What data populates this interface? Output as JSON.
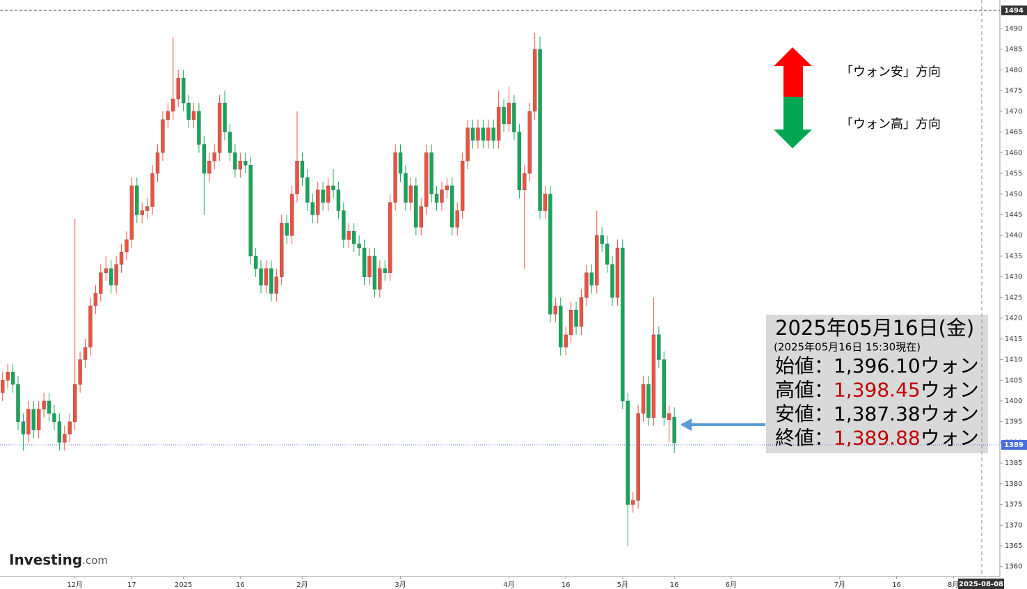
{
  "chart_data": {
    "type": "candlestick",
    "up_color": "#f0513e",
    "down_color": "#11a85a",
    "xlim": [
      -0.5,
      193
    ],
    "ylim": [
      1357.6,
      1496.9
    ],
    "yticks": [
      1360,
      1365,
      1370,
      1375,
      1380,
      1385,
      1390,
      1395,
      1400,
      1405,
      1410,
      1415,
      1420,
      1425,
      1430,
      1435,
      1440,
      1445,
      1450,
      1455,
      1460,
      1465,
      1470,
      1475,
      1480,
      1485,
      1490
    ],
    "xticks": [
      {
        "value": 14,
        "label": "12月"
      },
      {
        "value": 25,
        "label": "17"
      },
      {
        "value": 35,
        "label": "2025"
      },
      {
        "value": 46,
        "label": "16"
      },
      {
        "value": 58,
        "label": "2月"
      },
      {
        "value": 77,
        "label": "3月"
      },
      {
        "value": 98,
        "label": "4月"
      },
      {
        "value": 109,
        "label": "16"
      },
      {
        "value": 120,
        "label": "5月"
      },
      {
        "value": 130,
        "label": "16"
      },
      {
        "value": 141,
        "label": "6月"
      },
      {
        "value": 162,
        "label": "7月"
      },
      {
        "value": 173,
        "label": "16"
      },
      {
        "value": 184,
        "label": "8月"
      }
    ],
    "y_markers": [
      {
        "value": 1494.4,
        "label": "1494",
        "color": "#333333",
        "style": "dashed"
      },
      {
        "value": 1389.4,
        "label": "1389",
        "color": "#4a6fdc",
        "style": "dotted"
      }
    ],
    "x_marker": {
      "value": 189.5,
      "label": "2025-08-08"
    },
    "open": [
      1402,
      1405,
      1407,
      1404,
      1395,
      1392,
      1398,
      1393,
      1398,
      1400,
      1397,
      1395,
      1390,
      1392,
      1395,
      1404,
      1410,
      1413,
      1423,
      1426,
      1431,
      1432,
      1428,
      1433,
      1436,
      1439,
      1452,
      1445,
      1446,
      1447,
      1455,
      1460,
      1468,
      1470,
      1473,
      1478,
      1472,
      1468,
      1470,
      1462,
      1455,
      1458,
      1460,
      1472,
      1465,
      1460,
      1456,
      1458,
      1457,
      1435,
      1432,
      1428,
      1432,
      1426,
      1430,
      1443,
      1440,
      1450,
      1458,
      1454,
      1448,
      1445,
      1451,
      1448,
      1452,
      1451,
      1446,
      1439,
      1441,
      1438,
      1437,
      1430,
      1435,
      1427,
      1432,
      1431,
      1448,
      1460,
      1455,
      1448,
      1452,
      1442,
      1447,
      1460,
      1450,
      1448,
      1451,
      1452,
      1442,
      1446,
      1458,
      1466,
      1463,
      1466,
      1463,
      1466,
      1463,
      1471,
      1467,
      1472,
      1465,
      1451,
      1455,
      1470,
      1485,
      1446,
      1450,
      1421,
      1423,
      1413,
      1416,
      1422,
      1418,
      1425,
      1431,
      1428,
      1440,
      1438,
      1433,
      1425,
      1437,
      1400,
      1375,
      1376,
      1397,
      1404,
      1396,
      1416,
      1410,
      1395.5,
      1396.1
    ],
    "high": [
      1407,
      1409,
      1409,
      1406,
      1397,
      1400,
      1400,
      1400,
      1402,
      1402,
      1399,
      1397,
      1394,
      1397,
      1444,
      1412,
      1415,
      1425,
      1428,
      1433,
      1435,
      1434,
      1435,
      1438,
      1441,
      1454,
      1454,
      1448,
      1449,
      1457,
      1462,
      1470,
      1472,
      1488,
      1480,
      1480,
      1474,
      1472,
      1472,
      1464,
      1460,
      1462,
      1474,
      1475,
      1467,
      1462,
      1460,
      1460,
      1459,
      1437,
      1434,
      1434,
      1434,
      1432,
      1445,
      1445,
      1452,
      1470,
      1460,
      1456,
      1450,
      1453,
      1453,
      1454,
      1456,
      1453,
      1448,
      1443,
      1443,
      1440,
      1439,
      1437,
      1437,
      1434,
      1434,
      1450,
      1462,
      1462,
      1457,
      1454,
      1454,
      1449,
      1462,
      1462,
      1452,
      1453,
      1454,
      1454,
      1448,
      1460,
      1468,
      1468,
      1468,
      1468,
      1468,
      1468,
      1475,
      1473,
      1476,
      1474,
      1467,
      1457,
      1472,
      1489,
      1488,
      1452,
      1452,
      1425,
      1425,
      1418,
      1424,
      1424,
      1427,
      1433,
      1433,
      1446,
      1442,
      1440,
      1435,
      1439,
      1439,
      1402,
      1378,
      1399,
      1406,
      1406,
      1425,
      1418,
      1412,
      1399,
      1398.45
    ],
    "low": [
      1400,
      1403,
      1402,
      1393,
      1388,
      1390,
      1391,
      1391,
      1396,
      1395,
      1393,
      1388,
      1388,
      1390,
      1393,
      1402,
      1408,
      1411,
      1421,
      1424,
      1429,
      1426,
      1426,
      1431,
      1434,
      1437,
      1443,
      1443,
      1444,
      1445,
      1453,
      1458,
      1466,
      1468,
      1471,
      1470,
      1466,
      1466,
      1460,
      1445,
      1453,
      1456,
      1458,
      1463,
      1458,
      1454,
      1454,
      1455,
      1433,
      1430,
      1426,
      1426,
      1424,
      1424,
      1428,
      1438,
      1438,
      1448,
      1452,
      1446,
      1443,
      1443,
      1446,
      1446,
      1449,
      1444,
      1437,
      1437,
      1436,
      1435,
      1428,
      1428,
      1425,
      1425,
      1429,
      1429,
      1446,
      1453,
      1446,
      1446,
      1440,
      1440,
      1445,
      1448,
      1446,
      1446,
      1449,
      1440,
      1440,
      1444,
      1456,
      1461,
      1461,
      1461,
      1461,
      1461,
      1461,
      1465,
      1465,
      1463,
      1449,
      1432,
      1453,
      1468,
      1444,
      1444,
      1419,
      1419,
      1411,
      1411,
      1414,
      1416,
      1416,
      1423,
      1426,
      1426,
      1436,
      1431,
      1423,
      1423,
      1398,
      1365,
      1373,
      1374,
      1395,
      1394,
      1394,
      1408,
      1394,
      1390,
      1387.38
    ],
    "close": [
      1405,
      1407,
      1404,
      1395,
      1392,
      1398,
      1393,
      1398,
      1400,
      1397,
      1395,
      1390,
      1392,
      1395,
      1404,
      1410,
      1413,
      1423,
      1426,
      1431,
      1432,
      1428,
      1433,
      1436,
      1439,
      1452,
      1445,
      1446,
      1447,
      1455,
      1460,
      1468,
      1470,
      1473,
      1478,
      1472,
      1468,
      1470,
      1462,
      1455,
      1458,
      1460,
      1472,
      1465,
      1460,
      1456,
      1458,
      1457,
      1435,
      1432,
      1428,
      1432,
      1426,
      1430,
      1443,
      1440,
      1450,
      1458,
      1454,
      1448,
      1445,
      1451,
      1448,
      1452,
      1451,
      1446,
      1439,
      1441,
      1438,
      1437,
      1430,
      1435,
      1427,
      1432,
      1431,
      1448,
      1460,
      1455,
      1448,
      1452,
      1442,
      1447,
      1460,
      1450,
      1448,
      1451,
      1452,
      1442,
      1446,
      1458,
      1466,
      1463,
      1466,
      1463,
      1466,
      1463,
      1471,
      1467,
      1472,
      1465,
      1451,
      1455,
      1470,
      1485,
      1446,
      1450,
      1421,
      1423,
      1413,
      1416,
      1422,
      1418,
      1425,
      1431,
      1428,
      1440,
      1438,
      1433,
      1425,
      1437,
      1400,
      1375,
      1376,
      1397,
      1404,
      1396,
      1416,
      1410,
      1396,
      1397,
      1389.88
    ],
    "direction_notes": [
      {
        "text": "「ウォン安」方向",
        "color": "#ff0000"
      },
      {
        "text": "「ウォン高」方向",
        "color": "#00a651"
      }
    ],
    "info_box": {
      "title": "2025年05月16日(金)",
      "subtitle": "(2025年05月16日 15:30現在)",
      "rows": [
        {
          "label": "始値：",
          "value": "1,396.10",
          "unit": "ウォン",
          "color": "#000000"
        },
        {
          "label": "高値：",
          "value": "1,398.45",
          "unit": "ウォン",
          "color": "#c00000"
        },
        {
          "label": "安値：",
          "value": "1,387.38",
          "unit": "ウォン",
          "color": "#000000"
        },
        {
          "label": "終値：",
          "value": "1,389.88",
          "unit": "ウォン",
          "color": "#c00000"
        }
      ]
    },
    "logo": "Investing",
    "logo_suffix": ".com"
  }
}
